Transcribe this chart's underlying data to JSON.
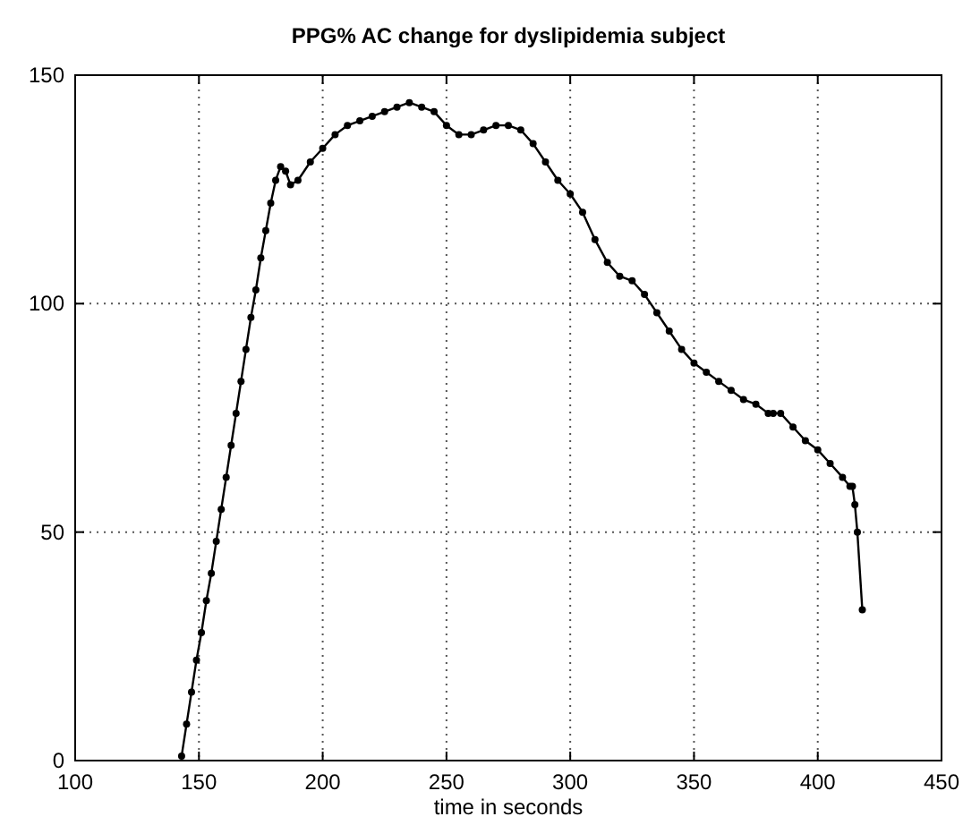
{
  "chart_data": {
    "type": "line",
    "title": "PPG% AC change for dyslipidemia subject",
    "xlabel": "time in seconds",
    "x": [
      143,
      145,
      147,
      149,
      151,
      153,
      155,
      157,
      159,
      161,
      163,
      165,
      167,
      169,
      171,
      173,
      175,
      177,
      179,
      181,
      183,
      185,
      187,
      190,
      195,
      200,
      205,
      210,
      215,
      220,
      225,
      230,
      235,
      240,
      245,
      250,
      255,
      260,
      265,
      270,
      275,
      280,
      285,
      290,
      295,
      300,
      305,
      310,
      315,
      320,
      325,
      330,
      335,
      340,
      345,
      350,
      355,
      360,
      365,
      370,
      375,
      380,
      382,
      385,
      390,
      395,
      400,
      405,
      410,
      413,
      414,
      415,
      416,
      418
    ],
    "series": [
      {
        "color": "#000000",
        "values": [
          1,
          8,
          15,
          22,
          28,
          35,
          41,
          48,
          55,
          62,
          69,
          76,
          83,
          90,
          97,
          103,
          110,
          116,
          122,
          127,
          130,
          129,
          126,
          127,
          131,
          134,
          137,
          139,
          140,
          141,
          142,
          143,
          144,
          143,
          142,
          139,
          137,
          137,
          138,
          139,
          139,
          138,
          135,
          131,
          127,
          124,
          120,
          114,
          109,
          106,
          105,
          102,
          98,
          94,
          90,
          87,
          85,
          83,
          81,
          79,
          78,
          76,
          76,
          76,
          73,
          70,
          68,
          65,
          62,
          60,
          60,
          56,
          50,
          33
        ]
      }
    ],
    "xlim": [
      100,
      450
    ],
    "ylim": [
      0,
      150
    ],
    "xticks": [
      100,
      150,
      200,
      250,
      300,
      350,
      400,
      450
    ],
    "yticks": [
      0,
      50,
      100,
      150
    ],
    "grid": true,
    "marker": "circle",
    "line_style": "solid"
  }
}
